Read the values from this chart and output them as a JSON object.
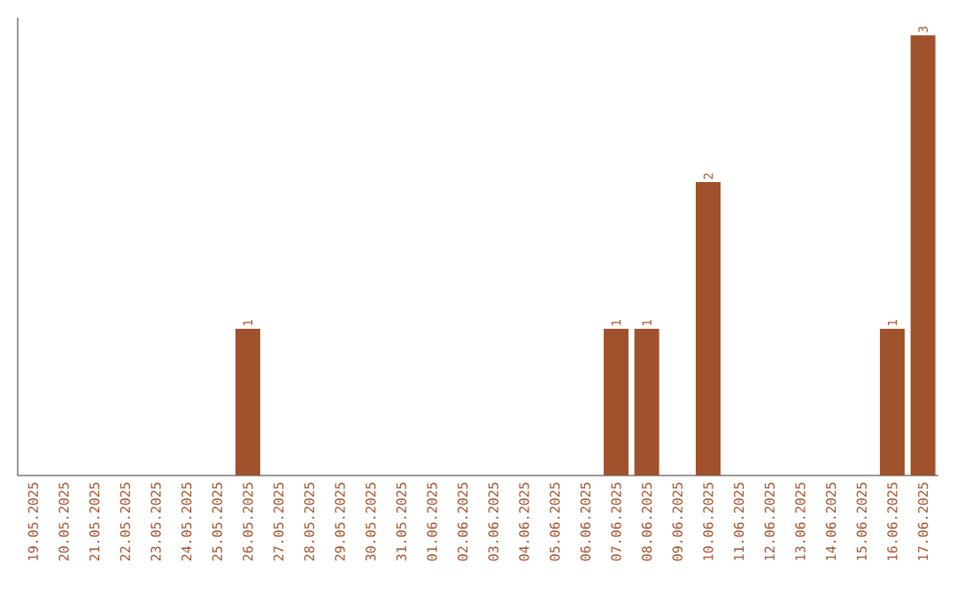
{
  "chart_data": {
    "type": "bar",
    "color": "#a0522d",
    "categories": [
      "19.05.2025",
      "20.05.2025",
      "21.05.2025",
      "22.05.2025",
      "23.05.2025",
      "24.05.2025",
      "25.05.2025",
      "26.05.2025",
      "27.05.2025",
      "28.05.2025",
      "29.05.2025",
      "30.05.2025",
      "31.05.2025",
      "01.06.2025",
      "02.06.2025",
      "03.06.2025",
      "04.06.2025",
      "05.06.2025",
      "06.06.2025",
      "07.06.2025",
      "08.06.2025",
      "09.06.2025",
      "10.06.2025",
      "11.06.2025",
      "12.06.2025",
      "13.06.2025",
      "14.06.2025",
      "15.06.2025",
      "16.06.2025",
      "17.06.2025"
    ],
    "values": [
      0,
      0,
      0,
      0,
      0,
      0,
      0,
      1,
      0,
      0,
      0,
      0,
      0,
      0,
      0,
      0,
      0,
      0,
      0,
      1,
      1,
      0,
      2,
      0,
      0,
      0,
      0,
      0,
      1,
      3
    ],
    "value_labels": [
      null,
      null,
      null,
      null,
      null,
      null,
      null,
      "1",
      null,
      null,
      null,
      null,
      null,
      null,
      null,
      null,
      null,
      null,
      null,
      "1",
      "1",
      null,
      "2",
      null,
      null,
      null,
      null,
      null,
      "1",
      "3"
    ]
  }
}
